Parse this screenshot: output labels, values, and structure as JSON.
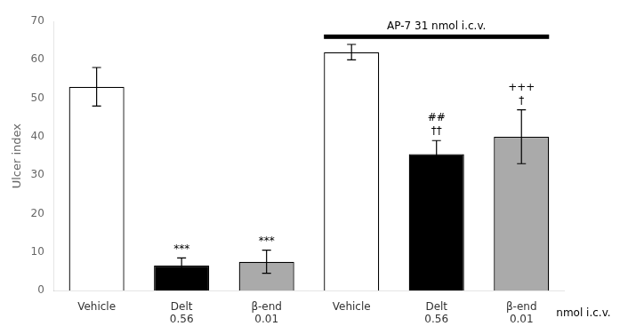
{
  "chart_data": {
    "type": "bar",
    "categories": [
      "Vehicle",
      "Delt\n0.56",
      "β-end\n0.01",
      "Vehicle",
      "Delt\n0.56",
      "β-end\n0.01"
    ],
    "values": [
      53,
      6.5,
      7.5,
      62,
      35.5,
      40
    ],
    "errors": [
      5.0,
      2.0,
      3.0,
      2.0,
      3.5,
      7.0
    ],
    "colors": [
      "white",
      "black",
      "#aaaaaa",
      "white",
      "black",
      "#aaaaaa"
    ],
    "ylabel": "Ulcer index",
    "xlabel": "nmol i.c.v.",
    "ylim": [
      0,
      70
    ],
    "yticks": [
      0,
      10,
      20,
      30,
      40,
      50,
      60,
      70
    ],
    "grid": false,
    "annotations": [
      {
        "category_index": 1,
        "text": "***"
      },
      {
        "category_index": 2,
        "text": "***"
      },
      {
        "category_index": 4,
        "text": "††"
      },
      {
        "category_index": 4,
        "text": "##"
      },
      {
        "category_index": 5,
        "text": "†"
      },
      {
        "category_index": 5,
        "text": "+++"
      }
    ],
    "bracket": {
      "label": "AP-7 31 nmol i.c.v.",
      "from_index": 3,
      "to_index": 5,
      "y": 66
    }
  }
}
